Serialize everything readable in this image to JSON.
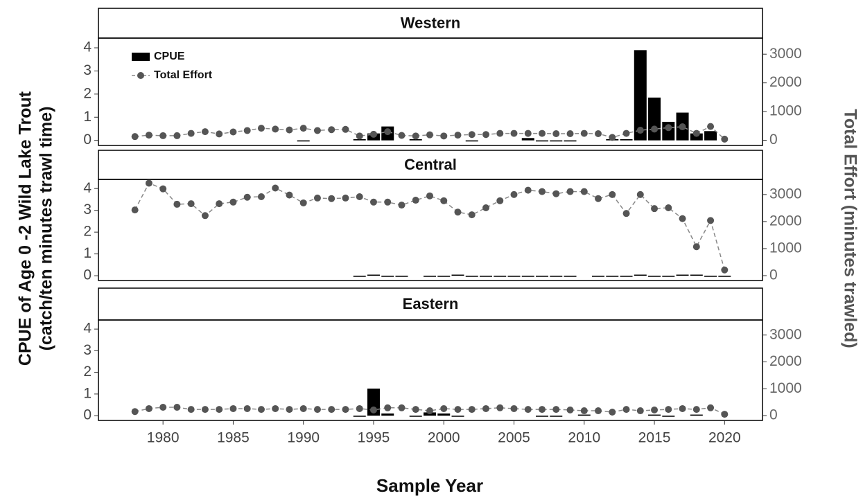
{
  "chart_data": {
    "type": "bar",
    "x_label": "Sample Year",
    "y_label": [
      "CPUE of Age 0 -2 Wild Lake Trout",
      "(catch/ten minutes trawl time)"
    ],
    "y2_label": "Total Effort (minutes trawled)",
    "xlim": [
      1975.4,
      2022.7
    ],
    "xticks": [
      1980,
      1985,
      1990,
      1995,
      2000,
      2005,
      2010,
      2015,
      2020
    ],
    "ylim": [
      -0.22,
      4.42
    ],
    "yticks": [
      0,
      1,
      2,
      3,
      4
    ],
    "y2lim": [
      -180,
      3560
    ],
    "y2ticks": [
      0,
      1000,
      2000,
      3000
    ],
    "legend": "top-left",
    "x": [
      1978,
      1979,
      1980,
      1981,
      1982,
      1983,
      1984,
      1985,
      1986,
      1987,
      1988,
      1989,
      1990,
      1991,
      1992,
      1993,
      1994,
      1995,
      1996,
      1997,
      1998,
      1999,
      2000,
      2001,
      2002,
      2003,
      2004,
      2005,
      2006,
      2007,
      2008,
      2009,
      2010,
      2011,
      2012,
      2013,
      2014,
      2015,
      2016,
      2017,
      2018,
      2019,
      2020
    ],
    "panels": [
      {
        "title": "Western",
        "series": [
          {
            "name": "CPUE",
            "color": "#000000",
            "values": [
              null,
              null,
              null,
              null,
              null,
              null,
              null,
              null,
              null,
              null,
              null,
              null,
              0,
              null,
              null,
              null,
              0.05,
              0.3,
              0.6,
              null,
              0.05,
              null,
              null,
              null,
              0,
              null,
              null,
              null,
              0.1,
              0,
              0,
              0,
              null,
              null,
              0.05,
              0.05,
              3.9,
              1.85,
              0.8,
              1.2,
              0.3,
              0.4,
              null
            ]
          },
          {
            "name": "Total Effort",
            "color": "#555555",
            "axis": "y2",
            "values": [
              130,
              180,
              160,
              160,
              240,
              300,
              220,
              290,
              340,
              420,
              390,
              360,
              420,
              340,
              370,
              380,
              150,
              210,
              300,
              170,
              150,
              190,
              150,
              180,
              200,
              200,
              240,
              240,
              240,
              240,
              230,
              230,
              240,
              230,
              100,
              240,
              350,
              390,
              440,
              470,
              240,
              480,
              40
            ]
          }
        ]
      },
      {
        "title": "Central",
        "series": [
          {
            "name": "CPUE",
            "color": "#000000",
            "values": [
              null,
              null,
              null,
              null,
              null,
              null,
              null,
              null,
              null,
              null,
              null,
              null,
              null,
              null,
              null,
              null,
              0,
              0.05,
              0,
              0,
              null,
              0,
              0,
              0.05,
              0,
              0,
              0,
              0,
              0,
              0,
              0,
              0,
              null,
              0,
              0,
              0,
              0.05,
              0,
              0,
              0.05,
              0.05,
              0,
              0
            ]
          },
          {
            "name": "Total Effort",
            "color": "#555555",
            "axis": "y2",
            "values": [
              2430,
              3420,
              3210,
              2640,
              2660,
              2220,
              2660,
              2720,
              2900,
              2920,
              3240,
              2980,
              2690,
              2870,
              2850,
              2870,
              2920,
              2720,
              2720,
              2610,
              2790,
              2950,
              2770,
              2350,
              2250,
              2510,
              2770,
              3000,
              3160,
              3110,
              3030,
              3110,
              3110,
              2850,
              3000,
              2300,
              3000,
              2480,
              2510,
              2110,
              1070,
              2040,
              210
            ]
          }
        ]
      },
      {
        "title": "Eastern",
        "series": [
          {
            "name": "CPUE",
            "color": "#000000",
            "values": [
              null,
              null,
              null,
              null,
              null,
              null,
              null,
              null,
              null,
              null,
              null,
              null,
              null,
              null,
              null,
              null,
              0,
              1.25,
              0.1,
              null,
              0,
              0.15,
              0.1,
              0,
              null,
              null,
              null,
              null,
              null,
              0,
              0,
              null,
              0.05,
              null,
              null,
              null,
              null,
              0.05,
              0,
              null,
              0.05,
              null,
              null
            ]
          },
          {
            "name": "Total Effort",
            "color": "#555555",
            "axis": "y2",
            "values": [
              150,
              260,
              310,
              310,
              230,
              230,
              230,
              260,
              260,
              230,
              260,
              230,
              260,
              230,
              230,
              230,
              260,
              210,
              290,
              290,
              230,
              180,
              260,
              230,
              230,
              260,
              290,
              260,
              230,
              230,
              230,
              210,
              180,
              180,
              130,
              230,
              180,
              210,
              230,
              260,
              230,
              290,
              50
            ]
          }
        ]
      }
    ]
  }
}
